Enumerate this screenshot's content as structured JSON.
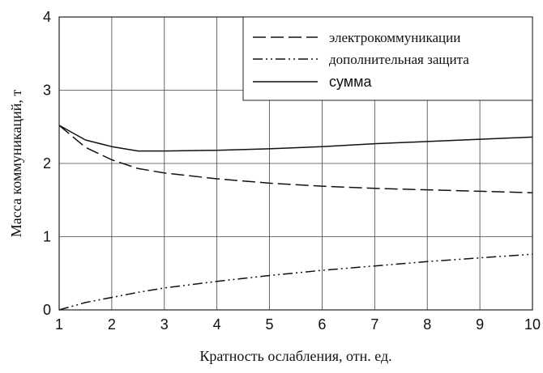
{
  "chart_data": {
    "type": "line",
    "xlabel": "Кратность ослабления, отн. ед.",
    "ylabel": "Масса коммуникаций, т",
    "xlim": [
      1,
      10
    ],
    "ylim": [
      0,
      4
    ],
    "xticks": [
      "1",
      "2",
      "3",
      "4",
      "5",
      "6",
      "7",
      "8",
      "9",
      "10"
    ],
    "yticks": [
      "0",
      "1",
      "2",
      "3",
      "4"
    ],
    "grid": true,
    "legend_position": "top-right",
    "series": [
      {
        "name": "электрокоммуникации",
        "style": "dashed",
        "x": [
          1,
          1.5,
          2,
          2.5,
          3,
          4,
          5,
          6,
          7,
          8,
          9,
          10
        ],
        "y": [
          2.52,
          2.22,
          2.05,
          1.93,
          1.87,
          1.79,
          1.73,
          1.69,
          1.66,
          1.64,
          1.62,
          1.6
        ]
      },
      {
        "name": "дополнительная защита",
        "style": "dash-dot-dot",
        "x": [
          1,
          1.5,
          2,
          2.5,
          3,
          4,
          5,
          6,
          7,
          8,
          9,
          10
        ],
        "y": [
          0.0,
          0.1,
          0.17,
          0.24,
          0.3,
          0.39,
          0.47,
          0.54,
          0.6,
          0.66,
          0.71,
          0.76
        ]
      },
      {
        "name": "сумма",
        "style": "solid",
        "x": [
          1,
          1.5,
          2,
          2.5,
          3,
          4,
          5,
          6,
          7,
          8,
          9,
          10
        ],
        "y": [
          2.52,
          2.32,
          2.23,
          2.17,
          2.17,
          2.18,
          2.2,
          2.23,
          2.27,
          2.3,
          2.33,
          2.36
        ]
      }
    ]
  }
}
